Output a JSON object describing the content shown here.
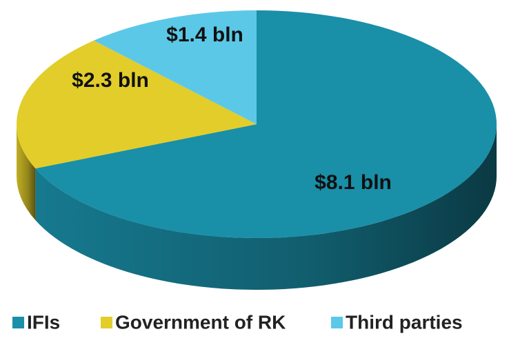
{
  "chart_data": {
    "type": "pie",
    "categories": [
      "IFIs",
      "Government of RK",
      "Third parties"
    ],
    "values": [
      8.1,
      2.3,
      1.4
    ],
    "value_labels": [
      "$8.1 bln",
      "$2.3 bln",
      "$1.4 bln"
    ],
    "colors": [
      "#1a8fa8",
      "#e2cd2a",
      "#5bc8e8"
    ],
    "legend": "bottom"
  }
}
